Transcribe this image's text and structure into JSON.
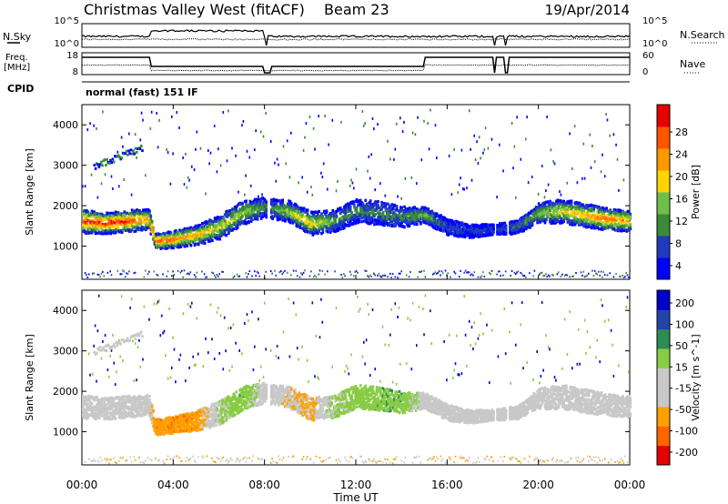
{
  "header": {
    "title": "Christmas Valley West (fitACF)",
    "beam": "Beam 23",
    "date": "19/Apr/2014"
  },
  "top_panels": {
    "nsky_label": "N.Sky",
    "nsky_ticks": [
      "10^5",
      "10^0"
    ],
    "nsearch_label": "N.Search",
    "nsearch_ticks": [
      "10^5",
      "10^0"
    ],
    "freq_label": "Freq.",
    "freq_unit": "[MHz]",
    "freq_ticks": [
      "18",
      "8"
    ],
    "nave_label": "Nave",
    "nave_ticks": [
      "60",
      "0"
    ],
    "cpid_label": "CPID",
    "cpid_value": "normal (fast) 151 IF"
  },
  "x_axis": {
    "title": "Time UT",
    "ticks": [
      "00:00",
      "04:00",
      "08:00",
      "12:00",
      "16:00",
      "20:00",
      "00:00"
    ]
  },
  "colors": {
    "power": [
      "#0000ff",
      "#1f3bbd",
      "#3a8a3a",
      "#6fbf4a",
      "#ffd400",
      "#ff9900",
      "#ff5500",
      "#e60000"
    ],
    "velocity": [
      "#e60000",
      "#ff6600",
      "#ffa000",
      "#c8c8c8",
      "#c8c8c8",
      "#88cc44",
      "#2e8b57",
      "#2244aa",
      "#0000cc"
    ]
  },
  "chart_data": [
    {
      "type": "heatmap",
      "name": "Power",
      "xlabel": "Time UT",
      "ylabel": "Slant Range [km]",
      "xlim": [
        0,
        24
      ],
      "ylim": [
        180,
        4500
      ],
      "yticks": [
        "1000",
        "2000",
        "3000",
        "4000"
      ],
      "colorbar_label": "Power [dB]",
      "colorbar_ticks": [
        "28",
        "24",
        "20",
        "16",
        "12",
        "8",
        "4"
      ],
      "scatter_band": {
        "x": [
          0,
          1,
          2,
          2.9,
          3.2,
          4,
          5,
          6,
          7,
          8,
          8.3,
          9,
          10,
          11,
          12,
          13,
          14,
          15,
          16,
          17,
          18,
          19,
          20,
          21,
          22,
          23,
          24
        ],
        "center": [
          1650,
          1600,
          1650,
          1700,
          1150,
          1200,
          1300,
          1500,
          1850,
          2000,
          1950,
          1900,
          1600,
          1650,
          1900,
          1850,
          1750,
          1800,
          1500,
          1400,
          1450,
          1500,
          1850,
          1900,
          1800,
          1700,
          1650
        ],
        "width": [
          450,
          400,
          420,
          380,
          300,
          320,
          380,
          450,
          450,
          380,
          380,
          400,
          450,
          420,
          450,
          450,
          400,
          300,
          300,
          250,
          200,
          250,
          400,
          450,
          450,
          420,
          400
        ],
        "peak_db": [
          28,
          28,
          27,
          20,
          26,
          24,
          20,
          16,
          14,
          8,
          8,
          14,
          18,
          10,
          8,
          8,
          8,
          12,
          4,
          4,
          4,
          6,
          12,
          16,
          20,
          24,
          20
        ]
      }
    },
    {
      "type": "heatmap",
      "name": "Velocity",
      "xlabel": "Time UT",
      "ylabel": "Slant Range [km]",
      "xlim": [
        0,
        24
      ],
      "ylim": [
        180,
        4500
      ],
      "yticks": [
        "1000",
        "2000",
        "3000",
        "4000"
      ],
      "colorbar_label": "Velocity [m s^-1]",
      "colorbar_ticks": [
        "200",
        "100",
        "50",
        "15",
        "-15",
        "-50",
        "-100",
        "-200"
      ],
      "scatter_band": {
        "x": [
          0,
          1,
          2,
          2.9,
          3.2,
          4,
          5,
          6,
          7,
          8,
          8.3,
          9,
          10,
          11,
          12,
          13,
          14,
          15,
          16,
          17,
          18,
          19,
          20,
          21,
          22,
          23,
          24
        ],
        "center": [
          1650,
          1600,
          1650,
          1700,
          1150,
          1200,
          1300,
          1500,
          1850,
          2000,
          1950,
          1900,
          1600,
          1650,
          1900,
          1850,
          1750,
          1800,
          1500,
          1400,
          1450,
          1500,
          1850,
          1900,
          1800,
          1700,
          1650
        ],
        "width": [
          450,
          400,
          420,
          380,
          300,
          320,
          380,
          450,
          450,
          380,
          380,
          400,
          450,
          420,
          450,
          450,
          400,
          300,
          300,
          250,
          200,
          250,
          400,
          450,
          450,
          420,
          400
        ],
        "velocity": [
          0,
          0,
          0,
          0,
          -60,
          -60,
          -60,
          30,
          60,
          0,
          0,
          -20,
          -40,
          40,
          50,
          60,
          60,
          0,
          0,
          0,
          0,
          0,
          0,
          0,
          0,
          0,
          0
        ]
      }
    }
  ]
}
